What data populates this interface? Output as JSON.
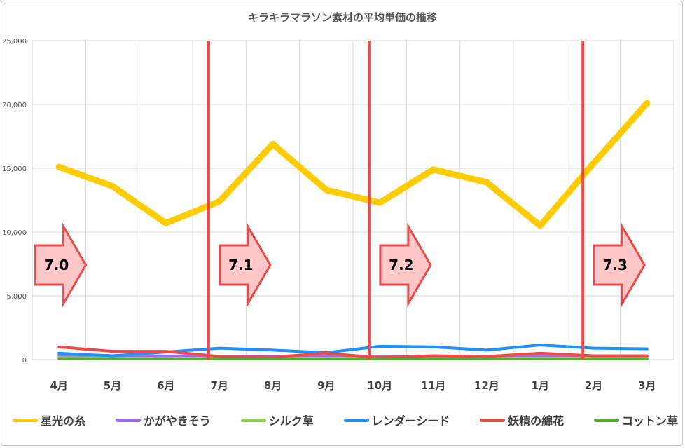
{
  "chart_data": {
    "type": "line",
    "title": "キラキラマラソン素材の平均単価の推移",
    "categories": [
      "4月",
      "5月",
      "6月",
      "7月",
      "8月",
      "9月",
      "10月",
      "11月",
      "12月",
      "1月",
      "2月",
      "3月"
    ],
    "ylim": [
      0,
      25000
    ],
    "yticks": [
      "0",
      "5,000",
      "10,000",
      "15,000",
      "20,000",
      "25,000"
    ],
    "grid": true,
    "legend_position": "bottom",
    "series": [
      {
        "name": "星光の糸",
        "color": "#ffcc00",
        "values": [
          15100,
          13600,
          10700,
          12400,
          16900,
          13300,
          12300,
          14900,
          13900,
          10500,
          15400,
          20100
        ]
      },
      {
        "name": "かがやきそう",
        "color": "#9b6cf0",
        "values": [
          350,
          300,
          280,
          250,
          260,
          270,
          240,
          250,
          260,
          300,
          280,
          250
        ]
      },
      {
        "name": "シルク草",
        "color": "#8fd14f",
        "values": [
          150,
          120,
          110,
          100,
          100,
          110,
          100,
          110,
          100,
          120,
          110,
          100
        ]
      },
      {
        "name": "レンダーシード",
        "color": "#1e90ff",
        "values": [
          500,
          300,
          600,
          900,
          750,
          550,
          1050,
          1000,
          750,
          1150,
          900,
          850
        ]
      },
      {
        "name": "妖精の綿花",
        "color": "#f04848",
        "values": [
          1000,
          650,
          650,
          250,
          200,
          500,
          150,
          300,
          250,
          500,
          300,
          300
        ]
      },
      {
        "name": "コットン草",
        "color": "#5aa83a",
        "values": [
          80,
          60,
          60,
          50,
          50,
          50,
          50,
          50,
          50,
          60,
          50,
          50
        ]
      }
    ],
    "version_markers": [
      {
        "label": "7.0",
        "after_category_index": -1
      },
      {
        "label": "7.1",
        "after_category_index": 2
      },
      {
        "label": "7.2",
        "after_category_index": 5
      },
      {
        "label": "7.3",
        "after_category_index": 9
      }
    ]
  }
}
